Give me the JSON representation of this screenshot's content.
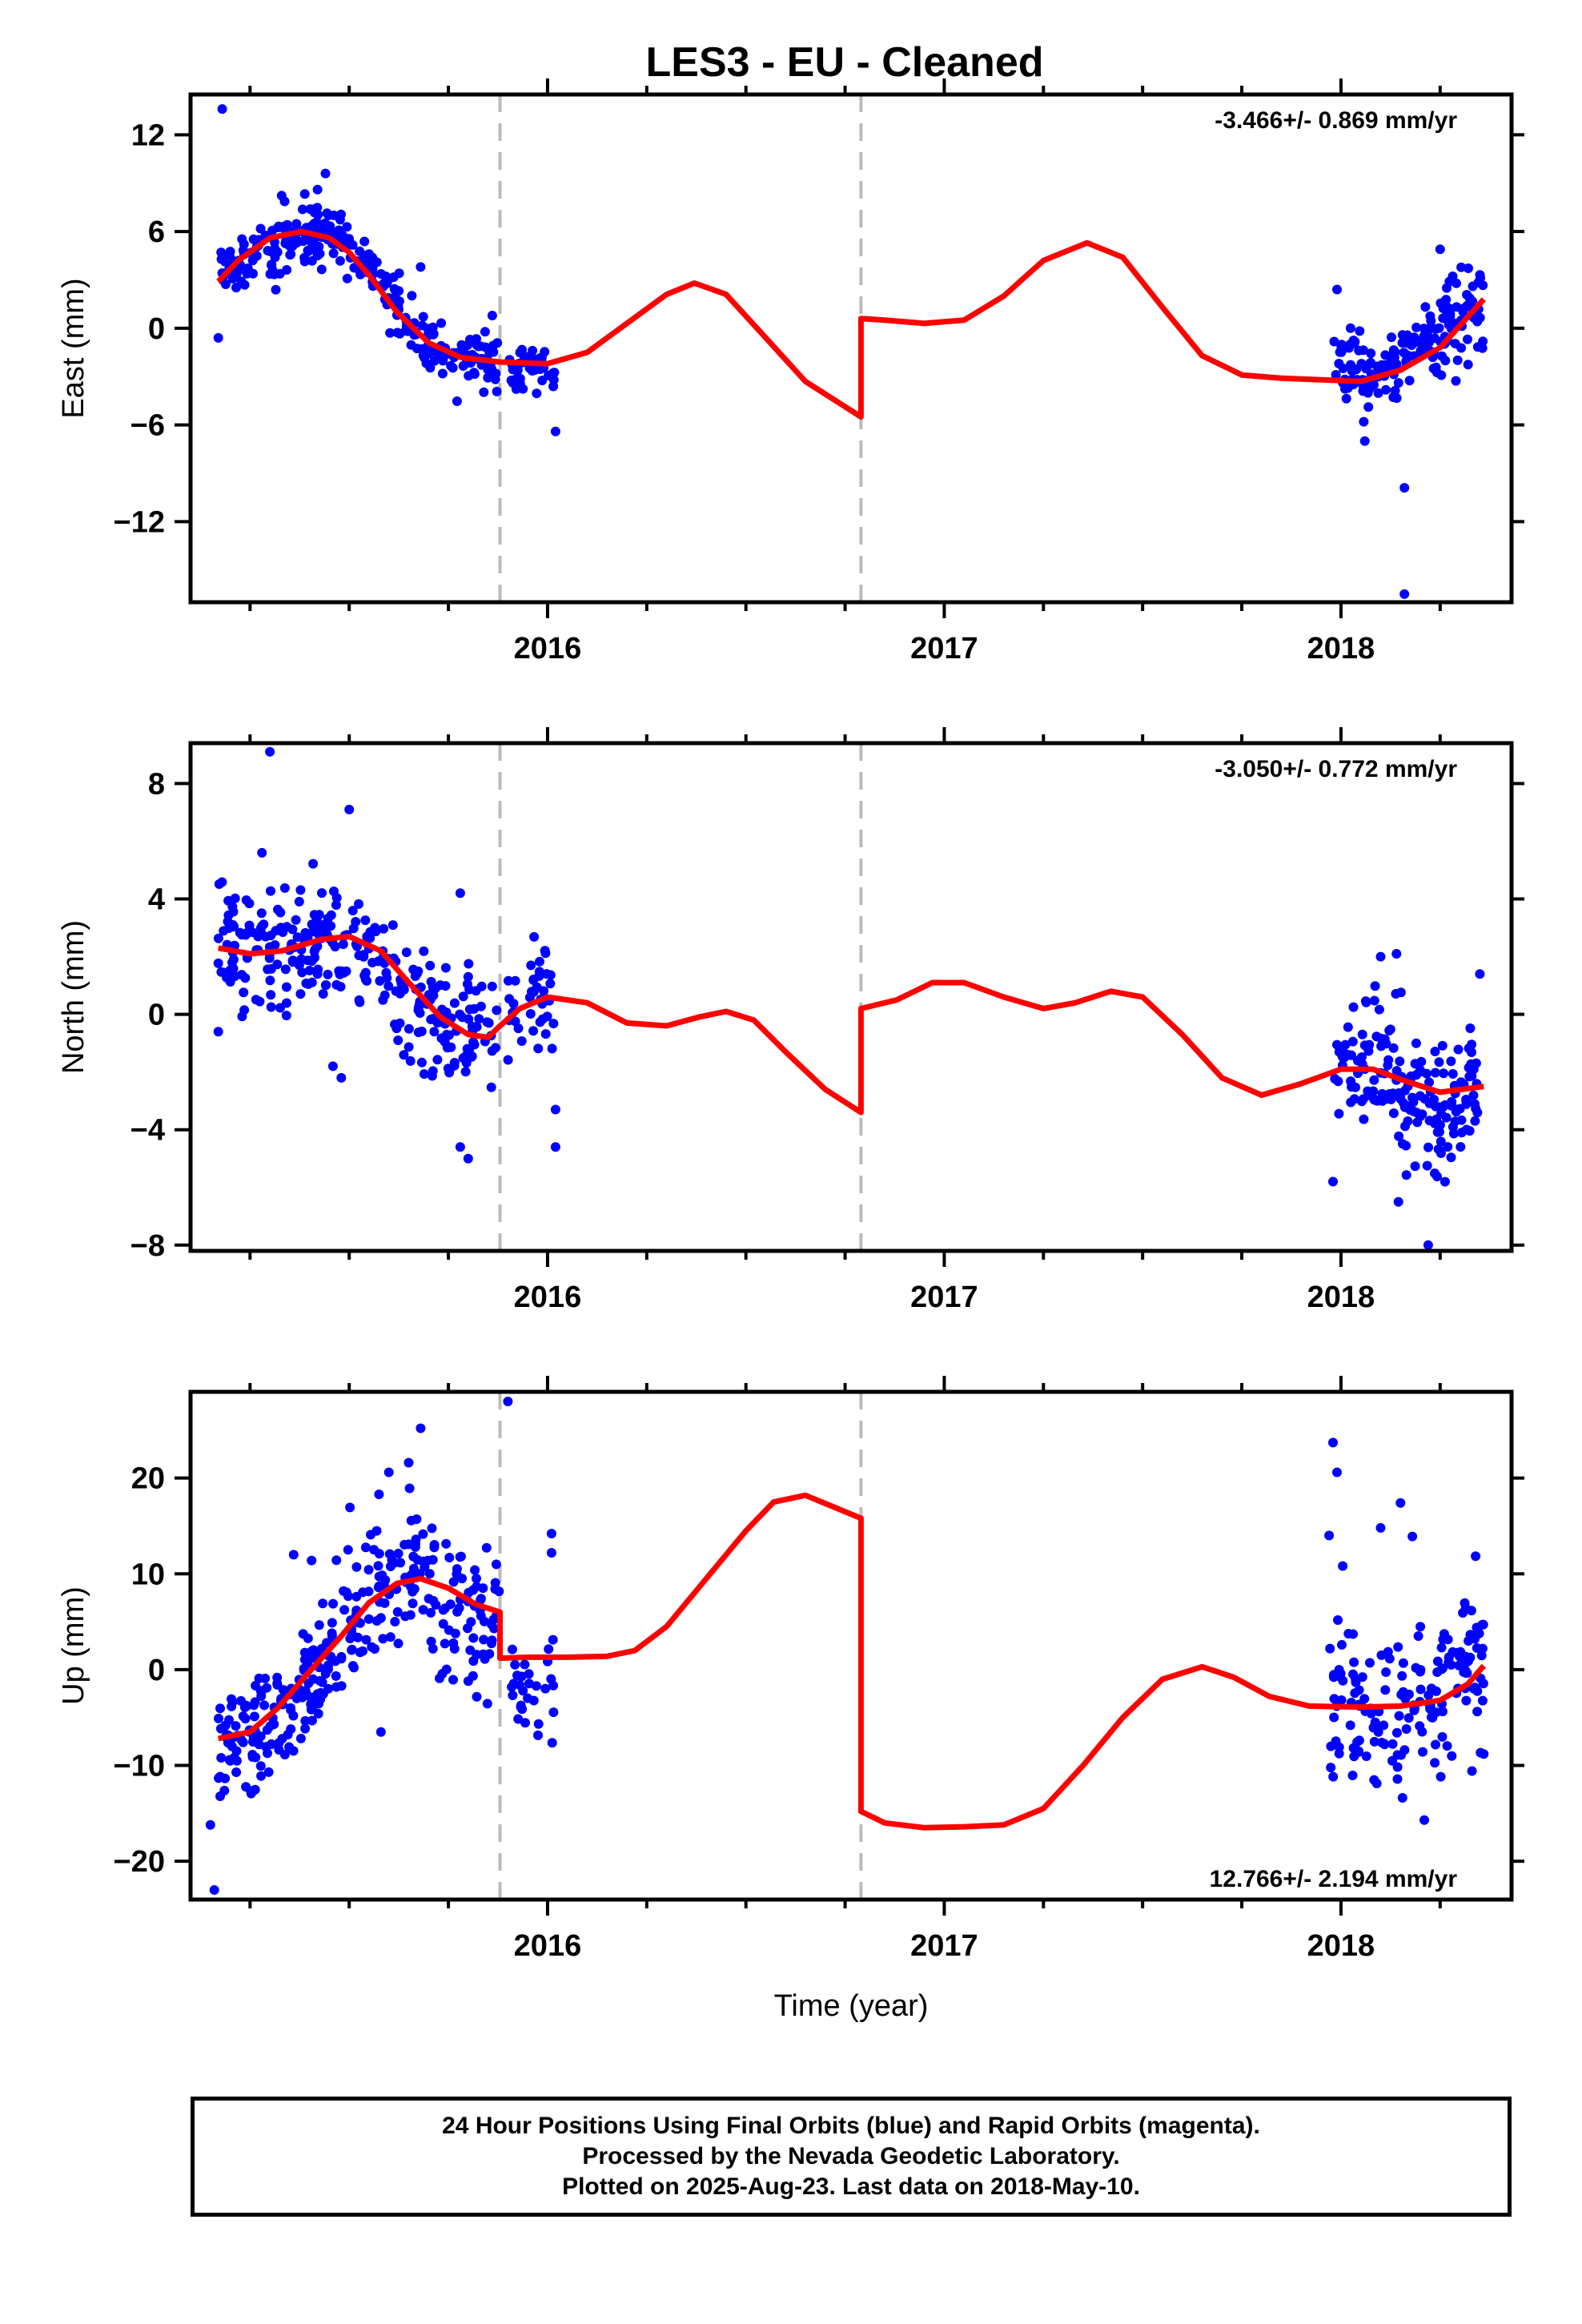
{
  "title": "LES3  - EU - Cleaned",
  "footer": {
    "line1": "24 Hour Positions Using Final Orbits (blue) and Rapid Orbits (magenta).",
    "line2": "Processed by the Nevada Geodetic Laboratory.",
    "line3": "Plotted on 2025-Aug-23. Last data on 2018-May-10."
  },
  "colors": {
    "data_points": "#0000ff",
    "model": "#ff0000",
    "equipment_change": "#bbbbbb",
    "frame": "#000000"
  },
  "chart_data": [
    {
      "type": "scatter",
      "name": "East",
      "ylabel": "East (mm)",
      "xlabel": "",
      "rate_label": "-3.466+/- 0.869 mm/yr",
      "rate_position": "top-right",
      "xlim": [
        2015.1,
        2018.43
      ],
      "ylim": [
        -17,
        14.5
      ],
      "xticks": [
        2016,
        2017,
        2018
      ],
      "xtick_labels": [
        "2016",
        "2017",
        "2018"
      ],
      "yticks": [
        12,
        6,
        0,
        -6,
        -12
      ],
      "ytick_labels": [
        "12",
        "6",
        "0",
        "−6",
        "−12"
      ],
      "vlines": [
        2015.88,
        2016.79
      ],
      "outliers": [
        {
          "x": 2015.18,
          "y": 13.6
        },
        {
          "x": 2015.17,
          "y": -0.6
        },
        {
          "x": 2016.02,
          "y": -6.4
        },
        {
          "x": 2018.06,
          "y": -7.0
        },
        {
          "x": 2018.16,
          "y": -9.9
        },
        {
          "x": 2018.16,
          "y": -16.5
        },
        {
          "x": 2017.99,
          "y": 2.4
        },
        {
          "x": 2018.25,
          "y": 4.9
        },
        {
          "x": 2015.44,
          "y": 9.6
        },
        {
          "x": 2015.42,
          "y": 8.6
        },
        {
          "x": 2015.68,
          "y": 3.8
        },
        {
          "x": 2015.55,
          "y": 4.6
        }
      ],
      "point_series": [
        {
          "x_start": 2015.17,
          "x_end": 2015.48,
          "count": 150,
          "spread": 1.0,
          "curve": [
            [
              2015.17,
              3.2
            ],
            [
              2015.25,
              4.5
            ],
            [
              2015.35,
              5.5
            ],
            [
              2015.45,
              5.6
            ]
          ]
        },
        {
          "x_start": 2015.48,
          "x_end": 2015.88,
          "count": 150,
          "spread": 0.9,
          "curve": [
            [
              2015.48,
              5.0
            ],
            [
              2015.58,
              3.0
            ],
            [
              2015.68,
              -0.5
            ],
            [
              2015.78,
              -1.9
            ],
            [
              2015.88,
              -2.4
            ]
          ]
        },
        {
          "x_start": 2015.9,
          "x_end": 2016.02,
          "count": 40,
          "spread": 0.9,
          "curve": [
            [
              2015.9,
              -2.5
            ],
            [
              2016.02,
              -2.6
            ]
          ]
        },
        {
          "x_start": 2017.98,
          "x_end": 2018.36,
          "count": 180,
          "spread": 1.3,
          "curve": [
            [
              2017.98,
              -3.3
            ],
            [
              2018.08,
              -2.8
            ],
            [
              2018.2,
              -1.2
            ],
            [
              2018.36,
              1.9
            ]
          ]
        }
      ],
      "model": {
        "segments": [
          [
            [
              2015.17,
              2.9
            ],
            [
              2015.22,
              4.2
            ],
            [
              2015.3,
              5.6
            ],
            [
              2015.38,
              6.0
            ],
            [
              2015.45,
              5.6
            ],
            [
              2015.5,
              4.7
            ],
            [
              2015.55,
              3.3
            ],
            [
              2015.62,
              1.0
            ],
            [
              2015.7,
              -0.9
            ],
            [
              2015.78,
              -1.8
            ],
            [
              2015.88,
              -2.1
            ],
            [
              2016.0,
              -2.2
            ],
            [
              2016.1,
              -1.5
            ],
            [
              2016.2,
              0.3
            ],
            [
              2016.3,
              2.1
            ],
            [
              2016.37,
              2.8
            ],
            [
              2016.45,
              2.1
            ],
            [
              2016.55,
              -0.6
            ],
            [
              2016.65,
              -3.3
            ],
            [
              2016.79,
              -5.5
            ]
          ],
          [
            [
              2016.79,
              0.6
            ],
            [
              2016.85,
              0.5
            ],
            [
              2016.95,
              0.3
            ],
            [
              2017.05,
              0.5
            ],
            [
              2017.15,
              2.0
            ],
            [
              2017.25,
              4.2
            ],
            [
              2017.36,
              5.3
            ],
            [
              2017.45,
              4.4
            ],
            [
              2017.55,
              1.3
            ],
            [
              2017.65,
              -1.7
            ],
            [
              2017.75,
              -2.9
            ],
            [
              2017.85,
              -3.1
            ],
            [
              2017.95,
              -3.2
            ],
            [
              2018.05,
              -3.3
            ],
            [
              2018.15,
              -2.6
            ],
            [
              2018.25,
              -1.2
            ],
            [
              2018.36,
              1.8
            ]
          ]
        ]
      }
    },
    {
      "type": "scatter",
      "name": "North",
      "ylabel": "North (mm)",
      "xlabel": "",
      "rate_label": "-3.050+/- 0.772 mm/yr",
      "rate_position": "top-right",
      "xlim": [
        2015.1,
        2018.43
      ],
      "ylim": [
        -8.2,
        9.4
      ],
      "xticks": [
        2016,
        2017,
        2018
      ],
      "xtick_labels": [
        "2016",
        "2017",
        "2018"
      ],
      "yticks": [
        8,
        4,
        0,
        -4,
        -8
      ],
      "ytick_labels": [
        "8",
        "4",
        "0",
        "−4",
        "−8"
      ],
      "vlines": [
        2015.88,
        2016.79
      ],
      "outliers": [
        {
          "x": 2015.3,
          "y": 9.1
        },
        {
          "x": 2015.5,
          "y": 7.1
        },
        {
          "x": 2015.28,
          "y": 5.6
        },
        {
          "x": 2015.48,
          "y": -2.2
        },
        {
          "x": 2015.17,
          "y": -0.6
        },
        {
          "x": 2015.8,
          "y": -5.0
        },
        {
          "x": 2015.78,
          "y": 4.2
        },
        {
          "x": 2016.02,
          "y": -4.6
        },
        {
          "x": 2016.02,
          "y": -3.3
        },
        {
          "x": 2018.14,
          "y": 2.1
        },
        {
          "x": 2018.1,
          "y": 2.0
        },
        {
          "x": 2017.98,
          "y": -5.8
        },
        {
          "x": 2018.22,
          "y": -8.0
        },
        {
          "x": 2018.35,
          "y": 1.4
        },
        {
          "x": 2015.78,
          "y": -4.6
        }
      ],
      "point_series": [
        {
          "x_start": 2015.17,
          "x_end": 2015.5,
          "count": 150,
          "spread": 1.1,
          "curve": [
            [
              2015.17,
              2.3
            ],
            [
              2015.3,
              2.0
            ],
            [
              2015.4,
              2.3
            ],
            [
              2015.5,
              2.5
            ]
          ]
        },
        {
          "x_start": 2015.5,
          "x_end": 2015.88,
          "count": 150,
          "spread": 1.2,
          "curve": [
            [
              2015.5,
              2.5
            ],
            [
              2015.6,
              1.3
            ],
            [
              2015.7,
              -0.2
            ],
            [
              2015.8,
              -0.9
            ],
            [
              2015.88,
              -0.6
            ]
          ]
        },
        {
          "x_start": 2015.9,
          "x_end": 2016.02,
          "count": 40,
          "spread": 0.9,
          "curve": [
            [
              2015.9,
              0.2
            ],
            [
              2016.02,
              1.0
            ]
          ]
        },
        {
          "x_start": 2017.98,
          "x_end": 2018.36,
          "count": 180,
          "spread": 1.2,
          "curve": [
            [
              2017.98,
              -1.8
            ],
            [
              2018.08,
              -1.7
            ],
            [
              2018.15,
              -2.3
            ],
            [
              2018.25,
              -3.6
            ],
            [
              2018.36,
              -2.0
            ]
          ]
        }
      ],
      "model": {
        "segments": [
          [
            [
              2015.17,
              2.3
            ],
            [
              2015.25,
              2.1
            ],
            [
              2015.33,
              2.2
            ],
            [
              2015.43,
              2.6
            ],
            [
              2015.5,
              2.7
            ],
            [
              2015.58,
              2.2
            ],
            [
              2015.65,
              1.1
            ],
            [
              2015.73,
              -0.1
            ],
            [
              2015.8,
              -0.7
            ],
            [
              2015.85,
              -0.8
            ],
            [
              2015.88,
              -0.4
            ],
            [
              2015.93,
              0.2
            ],
            [
              2016.0,
              0.6
            ],
            [
              2016.1,
              0.4
            ],
            [
              2016.2,
              -0.3
            ],
            [
              2016.3,
              -0.4
            ],
            [
              2016.38,
              -0.1
            ],
            [
              2016.45,
              0.1
            ],
            [
              2016.52,
              -0.2
            ],
            [
              2016.6,
              -1.3
            ],
            [
              2016.7,
              -2.6
            ],
            [
              2016.79,
              -3.4
            ]
          ],
          [
            [
              2016.79,
              0.2
            ],
            [
              2016.88,
              0.5
            ],
            [
              2016.97,
              1.1
            ],
            [
              2017.05,
              1.1
            ],
            [
              2017.15,
              0.6
            ],
            [
              2017.25,
              0.2
            ],
            [
              2017.33,
              0.4
            ],
            [
              2017.42,
              0.8
            ],
            [
              2017.5,
              0.6
            ],
            [
              2017.6,
              -0.7
            ],
            [
              2017.7,
              -2.2
            ],
            [
              2017.8,
              -2.8
            ],
            [
              2017.9,
              -2.4
            ],
            [
              2018.0,
              -1.9
            ],
            [
              2018.08,
              -1.9
            ],
            [
              2018.16,
              -2.3
            ],
            [
              2018.25,
              -2.7
            ],
            [
              2018.36,
              -2.5
            ]
          ]
        ]
      }
    },
    {
      "type": "scatter",
      "name": "Up",
      "ylabel": "Up (mm)",
      "xlabel": "Time (year)",
      "rate_label": "12.766+/- 2.194 mm/yr",
      "rate_position": "bottom-right",
      "xlim": [
        2015.1,
        2018.43
      ],
      "ylim": [
        -24,
        29
      ],
      "xticks": [
        2016,
        2017,
        2018
      ],
      "xtick_labels": [
        "2016",
        "2017",
        "2018"
      ],
      "yticks": [
        20,
        10,
        0,
        -10,
        -20
      ],
      "ytick_labels": [
        "20",
        "10",
        "0",
        "−10",
        "−20"
      ],
      "vlines": [
        2015.88,
        2016.79
      ],
      "outliers": [
        {
          "x": 2015.16,
          "y": -23.0
        },
        {
          "x": 2015.9,
          "y": 28.0
        },
        {
          "x": 2015.68,
          "y": 25.2
        },
        {
          "x": 2015.65,
          "y": 21.6
        },
        {
          "x": 2015.6,
          "y": 20.6
        },
        {
          "x": 2016.01,
          "y": 14.2
        },
        {
          "x": 2016.01,
          "y": 12.2
        },
        {
          "x": 2015.58,
          "y": -6.5
        },
        {
          "x": 2015.15,
          "y": -16.2
        },
        {
          "x": 2017.98,
          "y": 23.7
        },
        {
          "x": 2017.99,
          "y": 20.6
        },
        {
          "x": 2017.97,
          "y": 14.0
        },
        {
          "x": 2018.15,
          "y": 17.4
        },
        {
          "x": 2018.18,
          "y": 13.9
        },
        {
          "x": 2018.1,
          "y": 14.8
        },
        {
          "x": 2018.36,
          "y": -8.8
        },
        {
          "x": 2018.21,
          "y": -15.7
        },
        {
          "x": 2015.36,
          "y": 12.0
        }
      ],
      "point_series": [
        {
          "x_start": 2015.17,
          "x_end": 2015.45,
          "count": 150,
          "spread": 3.2,
          "curve": [
            [
              2015.17,
              -9.0
            ],
            [
              2015.25,
              -7.0
            ],
            [
              2015.35,
              -3.0
            ],
            [
              2015.45,
              1.5
            ]
          ]
        },
        {
          "x_start": 2015.45,
          "x_end": 2015.88,
          "count": 180,
          "spread": 4.0,
          "curve": [
            [
              2015.45,
              2.0
            ],
            [
              2015.55,
              7.5
            ],
            [
              2015.65,
              10.0
            ],
            [
              2015.75,
              7.5
            ],
            [
              2015.88,
              3.0
            ]
          ]
        },
        {
          "x_start": 2015.9,
          "x_end": 2016.02,
          "count": 30,
          "spread": 2.8,
          "curve": [
            [
              2015.9,
              -1.0
            ],
            [
              2016.02,
              -2.0
            ]
          ]
        },
        {
          "x_start": 2017.97,
          "x_end": 2018.36,
          "count": 170,
          "spread": 4.0,
          "curve": [
            [
              2017.97,
              -4.0
            ],
            [
              2018.1,
              -4.5
            ],
            [
              2018.2,
              -3.5
            ],
            [
              2018.28,
              -1.0
            ],
            [
              2018.36,
              1.0
            ]
          ]
        }
      ],
      "model": {
        "segments": [
          [
            [
              2015.17,
              -7.2
            ],
            [
              2015.25,
              -6.5
            ],
            [
              2015.32,
              -4.0
            ],
            [
              2015.4,
              -0.2
            ],
            [
              2015.48,
              3.5
            ],
            [
              2015.55,
              7.0
            ],
            [
              2015.62,
              9.0
            ],
            [
              2015.68,
              9.5
            ],
            [
              2015.75,
              8.5
            ],
            [
              2015.82,
              6.8
            ],
            [
              2015.88,
              6.0
            ]
          ],
          [
            [
              2015.88,
              1.2
            ],
            [
              2015.95,
              1.3
            ],
            [
              2016.05,
              1.3
            ],
            [
              2016.15,
              1.4
            ],
            [
              2016.22,
              2.0
            ],
            [
              2016.3,
              4.5
            ],
            [
              2016.4,
              9.5
            ],
            [
              2016.5,
              14.5
            ],
            [
              2016.57,
              17.5
            ],
            [
              2016.65,
              18.2
            ],
            [
              2016.72,
              17.0
            ],
            [
              2016.79,
              15.8
            ]
          ],
          [
            [
              2016.79,
              -14.8
            ],
            [
              2016.85,
              -16.0
            ],
            [
              2016.95,
              -16.5
            ],
            [
              2017.05,
              -16.4
            ],
            [
              2017.15,
              -16.2
            ],
            [
              2017.25,
              -14.5
            ],
            [
              2017.35,
              -10.0
            ],
            [
              2017.45,
              -5.0
            ],
            [
              2017.55,
              -1.0
            ],
            [
              2017.65,
              0.3
            ],
            [
              2017.73,
              -0.8
            ],
            [
              2017.82,
              -2.8
            ],
            [
              2017.92,
              -3.8
            ],
            [
              2018.05,
              -3.9
            ],
            [
              2018.15,
              -3.8
            ],
            [
              2018.25,
              -3.2
            ],
            [
              2018.32,
              -1.5
            ],
            [
              2018.36,
              0.4
            ]
          ]
        ]
      }
    }
  ]
}
